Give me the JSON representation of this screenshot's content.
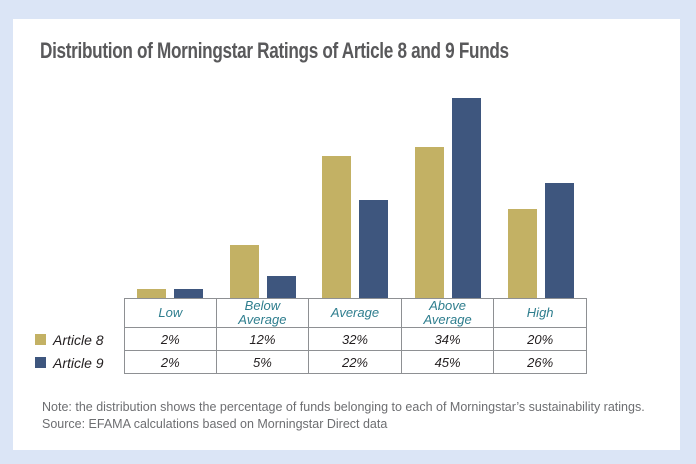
{
  "title": "Distribution of Morningstar Ratings of Article 8 and 9 Funds",
  "chart_data": {
    "type": "bar",
    "categories": [
      "Low",
      "Below Average",
      "Average",
      "Above Average",
      "High"
    ],
    "series": [
      {
        "name": "Article 8",
        "color": "#c3b164",
        "values": [
          2,
          12,
          32,
          34,
          20
        ],
        "labels": [
          "2%",
          "12%",
          "32%",
          "34%",
          "20%"
        ]
      },
      {
        "name": "Article 9",
        "color": "#3e567e",
        "values": [
          2,
          5,
          22,
          45,
          26
        ],
        "labels": [
          "2%",
          "5%",
          "22%",
          "45%",
          "26%"
        ]
      }
    ],
    "title": "Distribution of Morningstar Ratings of Article 8 and 9 Funds",
    "xlabel": "",
    "ylabel": "",
    "ylim": [
      0,
      48
    ],
    "grid": false,
    "legend_position": "left-of-table",
    "value_unit": "percent"
  },
  "notes": {
    "note": "Note: the distribution shows the percentage of funds belonging to each of Morningstar’s sustainability ratings.",
    "source": "Source: EFAMA calculations based on Morningstar Direct data"
  },
  "colors": {
    "page_background": "#dbe5f6",
    "card_background": "#ffffff",
    "article8": "#c3b164",
    "article9": "#3e567e",
    "header_text": "#2f7e8e",
    "title_text": "#59595b",
    "note_text": "#6d6e71",
    "table_border": "#8e9093"
  }
}
